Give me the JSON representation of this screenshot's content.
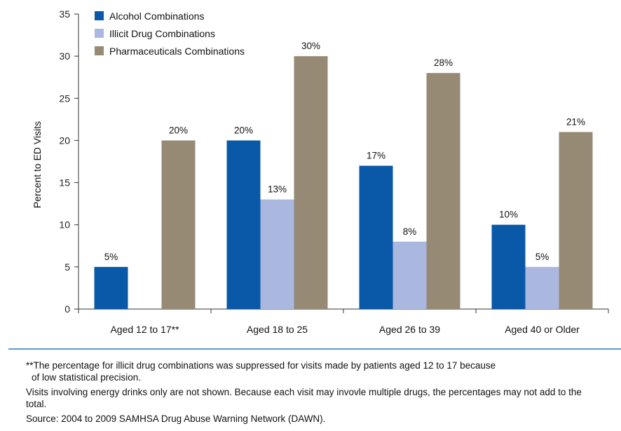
{
  "chart_data": {
    "type": "bar",
    "title": "",
    "xlabel": "",
    "ylabel": "Percent to ED Visits",
    "ylim": [
      0,
      35
    ],
    "yticks": [
      0,
      5,
      10,
      15,
      20,
      25,
      30,
      35
    ],
    "grid": false,
    "legend_position": "top-left",
    "categories": [
      "Aged 12 to 17**",
      "Aged 18 to 25",
      "Aged 26 to 39",
      "Aged 40 or Older"
    ],
    "series": [
      {
        "name": "Alcohol Combinations",
        "color": "#0a58a8",
        "values": [
          5,
          20,
          17,
          10
        ],
        "labels": [
          "5%",
          "20%",
          "17%",
          "10%"
        ]
      },
      {
        "name": "Illicit Drug Combinations",
        "color": "#aab8e0",
        "values": [
          null,
          13,
          8,
          5
        ],
        "labels": [
          null,
          "13%",
          "8%",
          "5%"
        ]
      },
      {
        "name": "Pharmaceuticals Combinations",
        "color": "#968a74",
        "values": [
          20,
          30,
          28,
          21
        ],
        "labels": [
          "20%",
          "30%",
          "28%",
          "21%"
        ]
      }
    ]
  },
  "notes": {
    "line1": "**The percentage for illicit drug combinations was suppressed for visits made by patients aged 12 to 17 because",
    "line1b": "of low statistical  precision.",
    "line2": "Visits involving energy drinks only are not shown. Because each visit may invovle multiple drugs, the percentages may not add to the total.",
    "source": "Source: 2004 to 2009 SAMHSA Drug Abuse Warning Network (DAWN)."
  }
}
